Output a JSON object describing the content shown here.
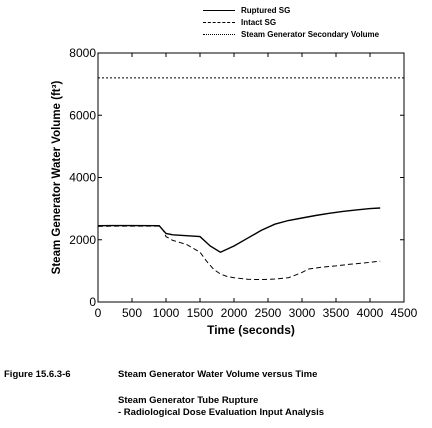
{
  "legend": [
    {
      "label": "Ruptured SG",
      "style": "solid"
    },
    {
      "label": "Intact SG",
      "style": "dashed"
    },
    {
      "label": "Steam Generator Secondary Volume",
      "style": "dotted"
    }
  ],
  "caption": {
    "figure_number": "Figure 15.6.3-6",
    "title": "Steam Generator Water Volume versus Time",
    "subtitle_line1": "Steam Generator Tube Rupture",
    "subtitle_line2": "- Radiological Dose Evaluation Input Analysis"
  },
  "chart_data": {
    "type": "line",
    "xlabel": "Time (seconds)",
    "ylabel": "Steam Generator Water Volume (ft³)",
    "xlim": [
      0,
      4500
    ],
    "ylim": [
      0,
      8000
    ],
    "xticks": [
      0,
      500,
      1000,
      1500,
      2000,
      2500,
      3000,
      3500,
      4000,
      4500
    ],
    "yticks": [
      0,
      2000,
      4000,
      6000,
      8000
    ],
    "grid": false,
    "legend_position": "top, above plot",
    "series": [
      {
        "name": "Ruptured SG",
        "style": "solid",
        "x": [
          0,
          200,
          500,
          900,
          960,
          1000,
          1100,
          1300,
          1500,
          1650,
          1800,
          2000,
          2200,
          2400,
          2600,
          2800,
          3000,
          3200,
          3400,
          3600,
          3800,
          4000,
          4150
        ],
        "y": [
          2450,
          2455,
          2455,
          2450,
          2300,
          2200,
          2160,
          2130,
          2100,
          1800,
          1600,
          1800,
          2050,
          2300,
          2500,
          2620,
          2700,
          2780,
          2850,
          2910,
          2960,
          3000,
          3020
        ]
      },
      {
        "name": "Intact SG",
        "style": "dashed",
        "x": [
          0,
          200,
          500,
          900,
          960,
          1000,
          1100,
          1300,
          1500,
          1600,
          1700,
          1800,
          1900,
          2000,
          2200,
          2400,
          2600,
          2800,
          2900,
          3000,
          3100,
          3300,
          3500,
          3700,
          3900,
          4100,
          4150
        ],
        "y": [
          2430,
          2440,
          2440,
          2440,
          2300,
          2100,
          1980,
          1850,
          1600,
          1300,
          1050,
          900,
          820,
          780,
          730,
          720,
          740,
          780,
          860,
          950,
          1060,
          1120,
          1160,
          1210,
          1250,
          1300,
          1310
        ]
      },
      {
        "name": "Steam Generator Secondary Volume",
        "style": "dotted",
        "x": [
          0,
          4500
        ],
        "y": [
          7200,
          7200
        ]
      }
    ]
  }
}
